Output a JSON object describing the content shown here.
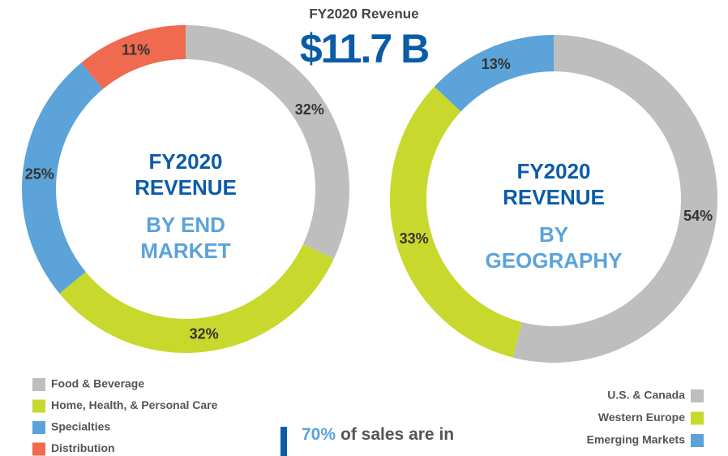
{
  "header": {
    "title": "FY2020 Revenue",
    "total": "$11.7 B"
  },
  "chart_data": [
    {
      "type": "pie",
      "center_text": [
        "FY2020",
        "REVENUE"
      ],
      "center_subtext": [
        "BY END",
        "MARKET"
      ],
      "categories": [
        "Food & Beverage",
        "Home, Health, & Personal Care",
        "Specialties",
        "Distribution"
      ],
      "values": [
        32,
        32,
        25,
        11
      ],
      "value_labels": [
        "32%",
        "32%",
        "25%",
        "11%"
      ],
      "colors": [
        "#bebebe",
        "#c9d82c",
        "#5ba3d9",
        "#ef6a4f"
      ],
      "legend": "bottom-left"
    },
    {
      "type": "pie",
      "center_text": [
        "FY2020",
        "REVENUE"
      ],
      "center_subtext": [
        "BY",
        "GEOGRAPHY"
      ],
      "categories": [
        "U.S. & Canada",
        "Western Europe",
        "Emerging Markets"
      ],
      "values": [
        54,
        33,
        13
      ],
      "value_labels": [
        "54%",
        "33%",
        "13%"
      ],
      "colors": [
        "#bebebe",
        "#c9d82c",
        "#5ba3d9"
      ],
      "legend": "bottom-right"
    }
  ],
  "footer": {
    "highlight": "70%",
    "text": "of sales are in"
  }
}
